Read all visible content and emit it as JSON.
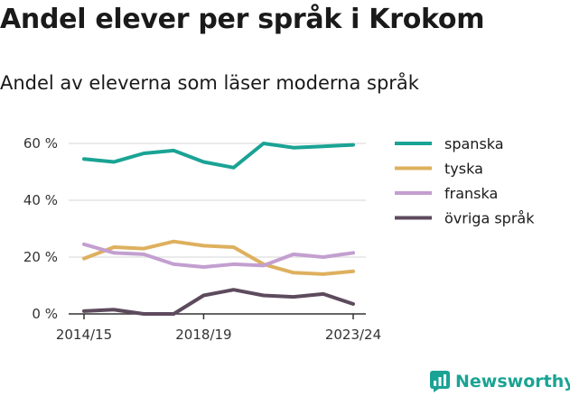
{
  "title": "Andel elever per språk i Krokom",
  "subtitle": "Andel av eleverna som läser moderna språk",
  "brand": {
    "name": "Newsworthy",
    "color": "#1aa394"
  },
  "chart_data": {
    "type": "line",
    "x": [
      "2014/15",
      "2015/16",
      "2016/17",
      "2017/18",
      "2018/19",
      "2019/20",
      "2020/21",
      "2021/22",
      "2022/23",
      "2023/24"
    ],
    "x_tick_labels": [
      "2014/15",
      "2018/19",
      "2023/24"
    ],
    "y_ticks": [
      0,
      20,
      40,
      60
    ],
    "y_tick_labels": [
      "0 %",
      "20 %",
      "40 %",
      "60 %"
    ],
    "ylim": [
      0,
      62
    ],
    "grid": true,
    "legend_position": "right",
    "series": [
      {
        "name": "spanska",
        "color": "#1aa394",
        "values": [
          54.5,
          53.5,
          56.5,
          57.5,
          53.5,
          51.5,
          60.0,
          58.5,
          59.0,
          59.5
        ]
      },
      {
        "name": "tyska",
        "color": "#deb05e",
        "values": [
          19.5,
          23.5,
          23.0,
          25.5,
          24.0,
          23.5,
          17.5,
          14.5,
          14.0,
          15.0
        ]
      },
      {
        "name": "franska",
        "color": "#c39fd0",
        "values": [
          24.5,
          21.5,
          21.0,
          17.5,
          16.5,
          17.5,
          17.0,
          21.0,
          20.0,
          21.5
        ]
      },
      {
        "name": "övriga språk",
        "color": "#5d4b5d",
        "values": [
          1.0,
          1.5,
          0.0,
          0.0,
          6.5,
          8.5,
          6.5,
          6.0,
          7.0,
          3.5
        ]
      }
    ]
  }
}
